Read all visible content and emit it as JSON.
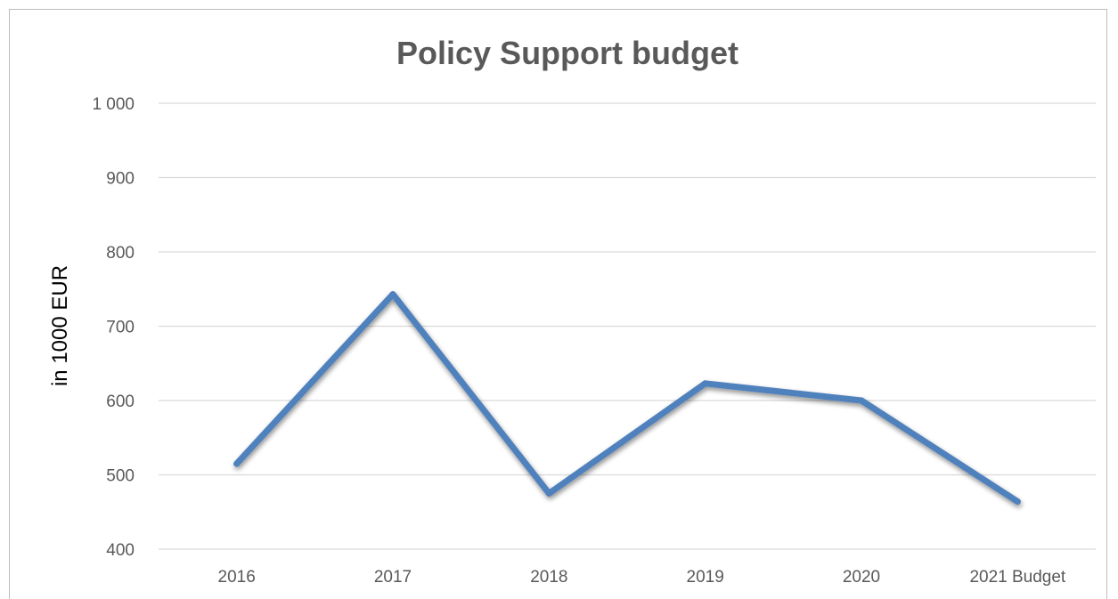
{
  "chart_data": {
    "type": "line",
    "title": "Policy Support budget",
    "xlabel": "",
    "ylabel": "in 1000 EUR",
    "categories": [
      "2016",
      "2017",
      "2018",
      "2019",
      "2020",
      "2021 Budget"
    ],
    "series": [
      {
        "values": [
          515,
          743,
          475,
          623,
          600,
          464
        ]
      }
    ],
    "ylim": [
      400,
      1000
    ],
    "yticks": [
      400,
      500,
      600,
      700,
      800,
      900,
      1000
    ],
    "ytick_labels": [
      "400",
      "500",
      "600",
      "700",
      "800",
      "900",
      "1 000"
    ],
    "grid": true,
    "legend": "none",
    "colors": {
      "line": "#4f81bd",
      "grid": "#d9d9d9",
      "text": "#595959"
    }
  }
}
